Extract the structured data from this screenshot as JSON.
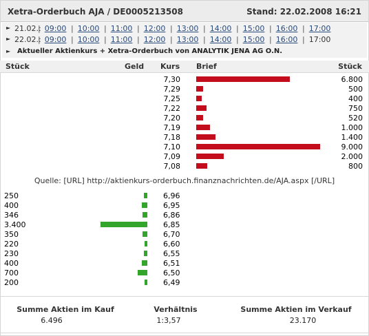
{
  "header": {
    "title": "Xetra-Orderbuch AJA / DE0005213508",
    "stand": "Stand: 22.02.2008 16:21"
  },
  "timebars": [
    {
      "date": "21.02.:",
      "slots": [
        {
          "label": "09:00",
          "link": true
        },
        {
          "label": "10:00",
          "link": true
        },
        {
          "label": "11:00",
          "link": true
        },
        {
          "label": "12:00",
          "link": true
        },
        {
          "label": "13:00",
          "link": true
        },
        {
          "label": "14:00",
          "link": true
        },
        {
          "label": "15:00",
          "link": true
        },
        {
          "label": "16:00",
          "link": true
        },
        {
          "label": "17:00",
          "link": true
        }
      ]
    },
    {
      "date": "22.02.:",
      "slots": [
        {
          "label": "09:00",
          "link": true
        },
        {
          "label": "10:00",
          "link": true
        },
        {
          "label": "11:00",
          "link": true
        },
        {
          "label": "12:00",
          "link": true
        },
        {
          "label": "13:00",
          "link": true
        },
        {
          "label": "14:00",
          "link": true
        },
        {
          "label": "15:00",
          "link": true
        },
        {
          "label": "16:00",
          "link": true
        },
        {
          "label": "17:00",
          "link": false
        }
      ]
    }
  ],
  "aktuell_link": "Aktueller Aktienkurs + Xetra-Orderbuch von ANALYTIK JENA AG O.N.",
  "columns": {
    "stueck_left": "Stück",
    "geld": "Geld",
    "kurs": "Kurs",
    "brief": "Brief",
    "stueck_right": "Stück"
  },
  "colors": {
    "ask": "#c40d1c",
    "bid": "#33a52a"
  },
  "chart_data": {
    "type": "bar",
    "asks": [
      {
        "kurs": "7,30",
        "stueck": "6.800",
        "value": 6800
      },
      {
        "kurs": "7,29",
        "stueck": "500",
        "value": 500
      },
      {
        "kurs": "7,25",
        "stueck": "400",
        "value": 400
      },
      {
        "kurs": "7,22",
        "stueck": "750",
        "value": 750
      },
      {
        "kurs": "7,20",
        "stueck": "520",
        "value": 520
      },
      {
        "kurs": "7,19",
        "stueck": "1.000",
        "value": 1000
      },
      {
        "kurs": "7,18",
        "stueck": "1.400",
        "value": 1400
      },
      {
        "kurs": "7,10",
        "stueck": "9.000",
        "value": 9000
      },
      {
        "kurs": "7,09",
        "stueck": "2.000",
        "value": 2000
      },
      {
        "kurs": "7,08",
        "stueck": "800",
        "value": 800
      }
    ],
    "bids": [
      {
        "kurs": "6,96",
        "stueck": "250",
        "value": 250
      },
      {
        "kurs": "6,95",
        "stueck": "400",
        "value": 400
      },
      {
        "kurs": "6,86",
        "stueck": "346",
        "value": 346
      },
      {
        "kurs": "6,85",
        "stueck": "3.400",
        "value": 3400
      },
      {
        "kurs": "6,70",
        "stueck": "350",
        "value": 350
      },
      {
        "kurs": "6,60",
        "stueck": "220",
        "value": 220
      },
      {
        "kurs": "6,55",
        "stueck": "230",
        "value": 230
      },
      {
        "kurs": "6,51",
        "stueck": "400",
        "value": 400
      },
      {
        "kurs": "6,50",
        "stueck": "700",
        "value": 700
      },
      {
        "kurs": "6,49",
        "stueck": "200",
        "value": 200
      }
    ]
  },
  "quelle": "Quelle: [URL] http://aktienkurs-orderbuch.finanznachrichten.de/AJA.aspx [/URL]",
  "summary": {
    "kauf_label": "Summe Aktien im Kauf",
    "kauf_value": "6.496",
    "ratio_label": "Verhältnis",
    "ratio_value": "1:3,57",
    "verkauf_label": "Summe Aktien im Verkauf",
    "verkauf_value": "23.170"
  }
}
